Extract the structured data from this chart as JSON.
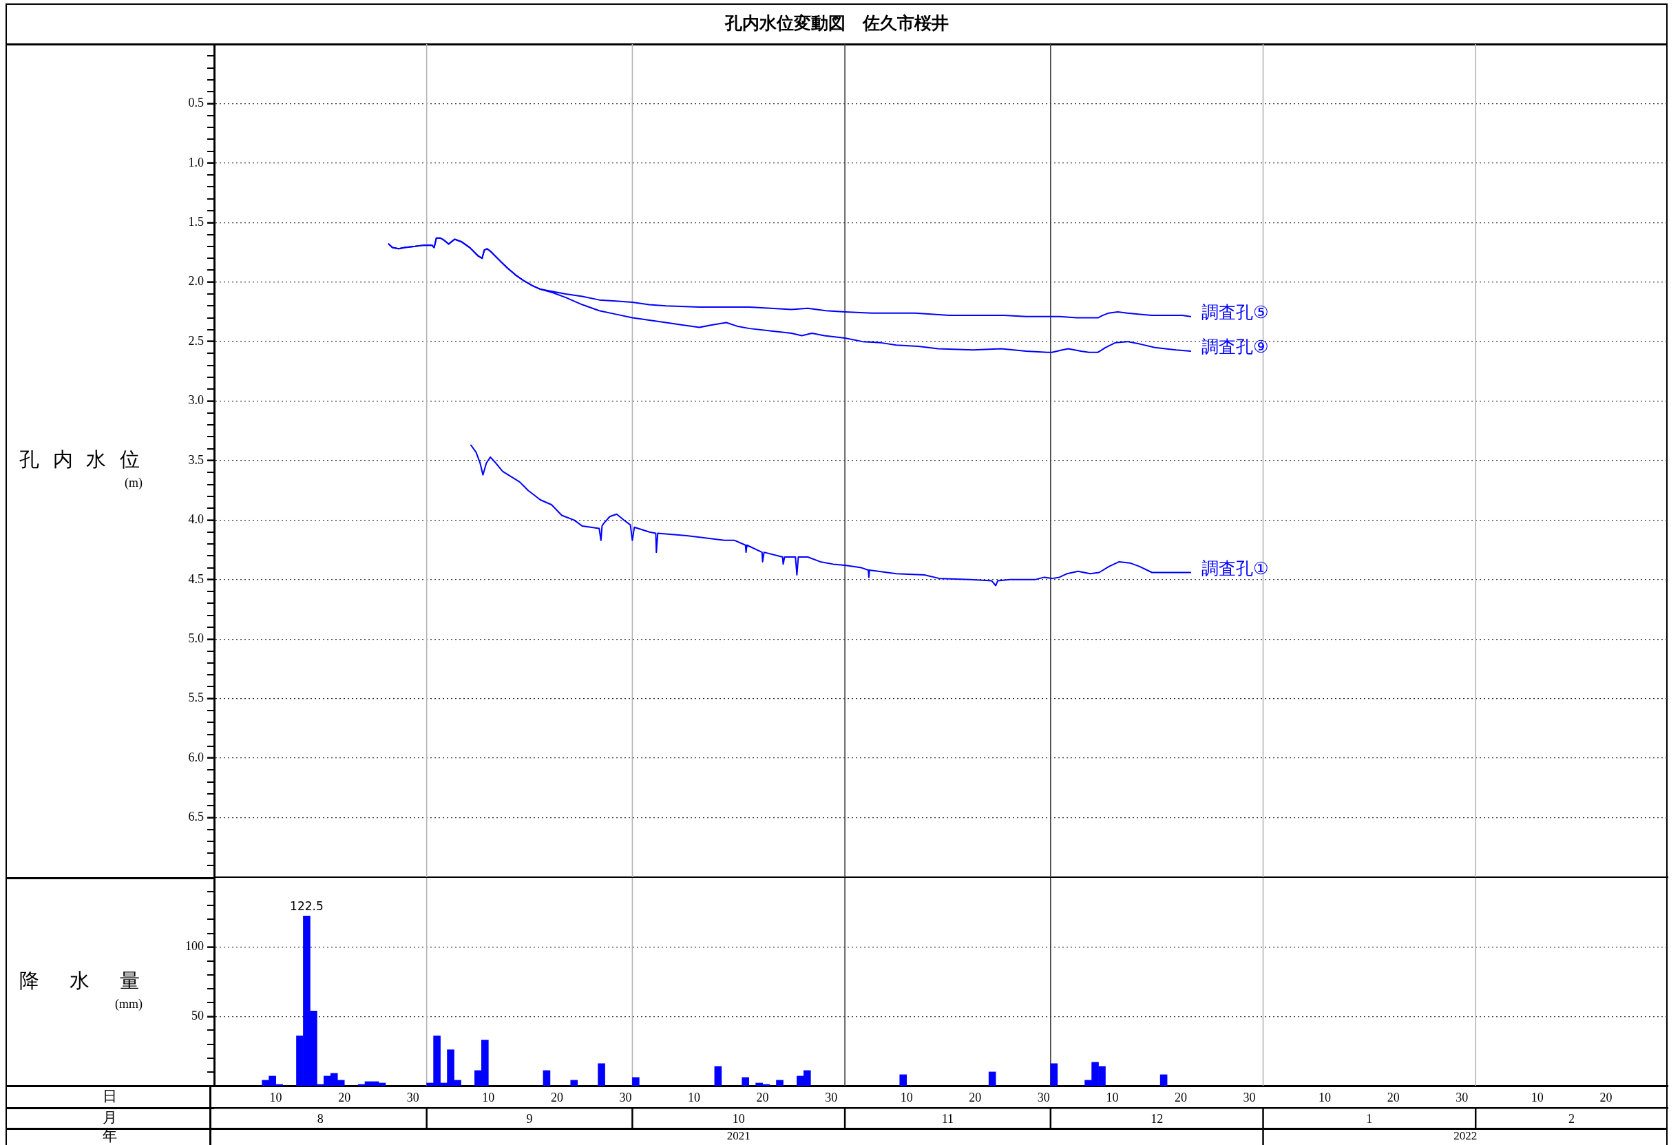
{
  "chart_data": [
    {
      "type": "line",
      "title": "孔内水位変動図　佐久市桜井",
      "ylabel": "孔内水位\n(m)",
      "xlim": [
        "2021-08-01",
        "2022-03-01"
      ],
      "tick_labels": "y",
      "ylim": [
        7,
        0
      ],
      "yticks": [
        {
          "value": 0.1,
          "label": null
        },
        {
          "value": 0.2,
          "label": null
        },
        {
          "value": 0.3,
          "label": null
        },
        {
          "value": 0.4,
          "label": null
        },
        0.5,
        {
          "value": 0.6,
          "label": null
        },
        {
          "value": 0.7,
          "label": null
        },
        {
          "value": 0.8,
          "label": null
        },
        {
          "value": 0.9,
          "label": null
        },
        {
          "value": 1,
          "label": "1.0"
        },
        {
          "value": 1.1,
          "label": null
        },
        {
          "value": 1.2,
          "label": null
        },
        {
          "value": 1.3,
          "label": null
        },
        {
          "value": 1.4,
          "label": null
        },
        1.5,
        {
          "value": 1.6,
          "label": null
        },
        {
          "value": 1.7,
          "label": null
        },
        {
          "value": 1.8,
          "label": null
        },
        {
          "value": 1.9,
          "label": null
        },
        {
          "value": 2,
          "label": "2.0"
        },
        {
          "value": 2.1,
          "label": null
        },
        {
          "value": 2.2,
          "label": null
        },
        {
          "value": 2.3,
          "label": null
        },
        {
          "value": 2.4,
          "label": null
        },
        2.5,
        {
          "value": 2.6,
          "label": null
        },
        {
          "value": 2.7,
          "label": null
        },
        {
          "value": 2.8,
          "label": null
        },
        {
          "value": 2.9,
          "label": null
        },
        {
          "value": 3,
          "label": "3.0"
        },
        {
          "value": 3.1,
          "label": null
        },
        {
          "value": 3.2,
          "label": null
        },
        {
          "value": 3.3,
          "label": null
        },
        {
          "value": 3.4,
          "label": null
        },
        3.5,
        {
          "value": 3.6,
          "label": null
        },
        {
          "value": 3.7,
          "label": null
        },
        {
          "value": 3.8,
          "label": null
        },
        {
          "value": 3.9,
          "label": null
        },
        {
          "value": 4,
          "label": "4.0"
        },
        {
          "value": 4.1,
          "label": null
        },
        {
          "value": 4.2,
          "label": null
        },
        {
          "value": 4.3,
          "label": null
        },
        {
          "value": 4.4,
          "label": null
        },
        4.5,
        {
          "value": 4.6,
          "label": null
        },
        {
          "value": 4.7,
          "label": null
        },
        {
          "value": 4.8,
          "label": null
        },
        {
          "value": 4.9,
          "label": null
        },
        {
          "value": 5,
          "label": "5.0"
        },
        {
          "value": 5.1,
          "label": null
        },
        {
          "value": 5.2,
          "label": null
        },
        {
          "value": 5.3,
          "label": null
        },
        {
          "value": 5.4,
          "label": null
        },
        5.5,
        {
          "value": 5.6,
          "label": null
        },
        {
          "value": 5.7,
          "label": null
        },
        {
          "value": 5.8,
          "label": null
        },
        {
          "value": 5.9,
          "label": null
        },
        {
          "value": 6,
          "label": "6.0"
        },
        {
          "value": 6.1,
          "label": null
        },
        {
          "value": 6.2,
          "label": null
        },
        {
          "value": 6.3,
          "label": null
        },
        {
          "value": 6.4,
          "label": null
        },
        6.5,
        {
          "value": 6.6,
          "label": null
        },
        {
          "value": 6.7,
          "label": null
        },
        {
          "value": 6.8,
          "label": null
        },
        {
          "value": 6.9,
          "label": null
        }
      ],
      "grid": "y",
      "ref_lines": [
        {
          "axis": "x",
          "value": "2021-09-01",
          "color": "#b4b4b4"
        },
        {
          "axis": "x",
          "value": "2021-10-01",
          "color": "#b4b4b4"
        },
        {
          "axis": "x",
          "value": "2021-11-01",
          "color": "#404040"
        },
        {
          "axis": "x",
          "value": "2021-12-01",
          "color": "#404040"
        },
        {
          "axis": "x",
          "value": "2022-01-01",
          "color": "#b4b4b4"
        },
        {
          "axis": "x",
          "value": "2022-02-01",
          "color": "#b4b4b4"
        }
      ],
      "series": [
        {
          "name": "調査孔⑤",
          "color": "#0000ff",
          "x": [
            "2021-08-26T11:00",
            "2021-08-27T00:00",
            "2021-08-27T22:00",
            "2021-08-28T19:00",
            "2021-08-30T08:00",
            "2021-08-31T14:00",
            "2021-09-01T19:00",
            "2021-09-02T02:00",
            "2021-09-02T10:00",
            "2021-09-03T00:00",
            "2021-09-03T14:00",
            "2021-09-04T05:00",
            "2021-09-05T02:00",
            "2021-09-06T01:00",
            "2021-09-07T07:00",
            "2021-09-08T12:00",
            "2021-09-09T02:00",
            "2021-09-09T10:00",
            "2021-09-09T19:00",
            "2021-09-10T07:00",
            "2021-09-11T12:00",
            "2021-09-12T18:00",
            "2021-09-13T23:00",
            "2021-09-15T05:00",
            "2021-09-16T10:00",
            "2021-09-17T14:00",
            "2021-09-19T11:00",
            "2021-09-21T07:00",
            "2021-09-23T17:00",
            "2021-09-26T04:00",
            "2021-09-28T14:00",
            "2021-10-01T00:00",
            "2021-10-03T11:00",
            "2021-10-05T22:00",
            "2021-10-10T19:00",
            "2021-10-13T19:00",
            "2021-10-18T02:00",
            "2021-10-24T05:00",
            "2021-10-26T14:00",
            "2021-10-29T05:00",
            "2021-11-01T00:00",
            "2021-11-04T22:00",
            "2021-11-06T17:00",
            "2021-11-11T05:00",
            "2021-11-13T22:00",
            "2021-11-16T05:00",
            "2021-11-20T14:00",
            "2021-11-24T05:00",
            "2021-11-27T10:00",
            "2021-12-01T00:00",
            "2021-12-02T07:00",
            "2021-12-04T19:00",
            "2021-12-07T22:00",
            "2021-12-08T14:00",
            "2021-12-09T12:00",
            "2021-12-10T19:00",
            "2021-12-12T05:00",
            "2021-12-14T00:00",
            "2021-12-15T19:00",
            "2021-12-17T12:00",
            "2021-12-20T05:00",
            "2021-12-21T10:00"
          ],
          "values": [
            1.68,
            1.71,
            1.72,
            1.71,
            1.7,
            1.69,
            1.69,
            1.71,
            1.63,
            1.63,
            1.65,
            1.68,
            1.64,
            1.66,
            1.71,
            1.78,
            1.8,
            1.73,
            1.72,
            1.74,
            1.81,
            1.88,
            1.94,
            1.99,
            2.03,
            2.06,
            2.08,
            2.1,
            2.12,
            2.15,
            2.16,
            2.17,
            2.19,
            2.2,
            2.21,
            2.21,
            2.21,
            2.23,
            2.22,
            2.24,
            2.25,
            2.26,
            2.26,
            2.26,
            2.27,
            2.28,
            2.28,
            2.28,
            2.29,
            2.29,
            2.29,
            2.3,
            2.3,
            2.28,
            2.26,
            2.25,
            2.26,
            2.27,
            2.28,
            2.28,
            2.28,
            2.29
          ]
        },
        {
          "name": "調査孔⑨",
          "color": "#0000ff",
          "x": [
            "2021-08-26T11:00",
            "2021-08-27T00:00",
            "2021-08-27T22:00",
            "2021-08-28T19:00",
            "2021-08-30T08:00",
            "2021-08-31T14:00",
            "2021-09-01T19:00",
            "2021-09-02T02:00",
            "2021-09-02T10:00",
            "2021-09-03T00:00",
            "2021-09-03T14:00",
            "2021-09-04T05:00",
            "2021-09-05T02:00",
            "2021-09-06T01:00",
            "2021-09-07T07:00",
            "2021-09-08T12:00",
            "2021-09-09T02:00",
            "2021-09-09T10:00",
            "2021-09-09T19:00",
            "2021-09-10T07:00",
            "2021-09-11T12:00",
            "2021-09-12T18:00",
            "2021-09-13T23:00",
            "2021-09-15T05:00",
            "2021-09-16T10:00",
            "2021-09-17T14:00",
            "2021-09-19T11:00",
            "2021-09-21T07:00",
            "2021-09-23T17:00",
            "2021-09-26T04:00",
            "2021-09-28T14:00",
            "2021-10-01T00:00",
            "2021-10-03T11:00",
            "2021-10-05T22:00",
            "2021-10-08T07:00",
            "2021-10-10T19:00",
            "2021-10-12T14:00",
            "2021-10-14T17:00",
            "2021-10-16T06:00",
            "2021-10-18T02:00",
            "2021-10-21T02:00",
            "2021-10-24T05:00",
            "2021-10-25T17:00",
            "2021-10-27T05:00",
            "2021-10-29T00:00",
            "2021-11-01T00:00",
            "2021-11-03T14:00",
            "2021-11-06T07:00",
            "2021-11-08T12:00",
            "2021-11-11T17:00",
            "2021-11-14T14:00",
            "2021-11-19T17:00",
            "2021-11-23T19:00",
            "2021-11-27T10:00",
            "2021-11-30T12:00",
            "2021-12-01T05:00",
            "2021-12-02T17:00",
            "2021-12-03T14:00",
            "2021-12-05T10:00",
            "2021-12-06T14:00",
            "2021-12-07T22:00",
            "2021-12-09T00:00",
            "2021-12-10T10:00",
            "2021-12-12T05:00",
            "2021-12-14T00:00",
            "2021-12-16T05:00",
            "2021-12-19T07:00",
            "2021-12-21T10:00"
          ],
          "values": [
            1.68,
            1.71,
            1.72,
            1.71,
            1.7,
            1.69,
            1.69,
            1.71,
            1.63,
            1.63,
            1.65,
            1.68,
            1.64,
            1.66,
            1.71,
            1.78,
            1.8,
            1.73,
            1.72,
            1.74,
            1.81,
            1.88,
            1.94,
            1.99,
            2.03,
            2.06,
            2.09,
            2.13,
            2.19,
            2.24,
            2.27,
            2.3,
            2.32,
            2.34,
            2.36,
            2.38,
            2.36,
            2.34,
            2.37,
            2.39,
            2.41,
            2.43,
            2.45,
            2.43,
            2.45,
            2.47,
            2.5,
            2.51,
            2.53,
            2.54,
            2.56,
            2.57,
            2.56,
            2.58,
            2.59,
            2.59,
            2.57,
            2.56,
            2.58,
            2.59,
            2.59,
            2.55,
            2.51,
            2.5,
            2.52,
            2.55,
            2.57,
            2.58
          ]
        },
        {
          "name": "調査孔①",
          "color": "#0000ff",
          "x": [
            "2021-09-07T11:00",
            "2021-09-08T05:00",
            "2021-09-08T19:00",
            "2021-09-09T05:00",
            "2021-09-09T17:00",
            "2021-09-10T07:00",
            "2021-09-10T22:00",
            "2021-09-12T02:00",
            "2021-09-14T14:00",
            "2021-09-15T19:00",
            "2021-09-17T14:00",
            "2021-09-18T19:00",
            "2021-09-19T05:00",
            "2021-09-20T17:00",
            "2021-09-22T12:00",
            "2021-09-23T17:00",
            "2021-09-26T04:00",
            "2021-09-26T10:00",
            "2021-09-26T14:00",
            "2021-09-26T19:00",
            "2021-09-27T17:00",
            "2021-09-28T17:00",
            "2021-09-29T19:00",
            "2021-09-30T17:00",
            "2021-10-01T00:00",
            "2021-10-01T07:00",
            "2021-10-03T12:00",
            "2021-10-04T10:00",
            "2021-10-04T12:00",
            "2021-10-04T17:00",
            "2021-10-08T22:00",
            "2021-10-14T10:00",
            "2021-10-15T22:00",
            "2021-10-17T12:00",
            "2021-10-17T14:00",
            "2021-10-17T17:00",
            "2021-10-19T22:00",
            "2021-10-20T00:00",
            "2021-10-20T05:00",
            "2021-10-22T22:00",
            "2021-10-23T00:00",
            "2021-10-23T05:00",
            "2021-10-24T19:00",
            "2021-10-25T00:00",
            "2021-10-25T05:00",
            "2021-10-26T14:00",
            "2021-10-28T10:00",
            "2021-10-30T07:00",
            "2021-11-01T00:00",
            "2021-11-03T10:00",
            "2021-11-04T10:00",
            "2021-11-04T12:00",
            "2021-11-04T14:00",
            "2021-11-08T12:00",
            "2021-11-12T14:00",
            "2021-11-14T19:00",
            "2021-11-19T07:00",
            "2021-11-22T10:00",
            "2021-11-23T00:00",
            "2021-11-23T07:00",
            "2021-11-25T02:00",
            "2021-11-28T17:00",
            "2021-11-30T02:00",
            "2021-12-01T05:00",
            "2021-12-02T07:00",
            "2021-12-03T10:00",
            "2021-12-05T00:00",
            "2021-12-06T19:00",
            "2021-12-08T02:00",
            "2021-12-09T12:00",
            "2021-12-11T00:00",
            "2021-12-12T14:00",
            "2021-12-14T00:00",
            "2021-12-15T19:00",
            "2021-12-18T10:00",
            "2021-12-21T10:00"
          ],
          "values": [
            3.37,
            3.43,
            3.52,
            3.62,
            3.52,
            3.47,
            3.51,
            3.59,
            3.68,
            3.75,
            3.83,
            3.86,
            3.87,
            3.96,
            4.0,
            4.05,
            4.07,
            4.17,
            4.05,
            4.03,
            3.97,
            3.95,
            4.0,
            4.04,
            4.17,
            4.06,
            4.1,
            4.11,
            4.27,
            4.11,
            4.13,
            4.17,
            4.17,
            4.21,
            4.27,
            4.21,
            4.27,
            4.35,
            4.27,
            4.31,
            4.37,
            4.31,
            4.31,
            4.46,
            4.31,
            4.31,
            4.35,
            4.37,
            4.38,
            4.4,
            4.42,
            4.48,
            4.42,
            4.45,
            4.46,
            4.49,
            4.5,
            4.51,
            4.55,
            4.51,
            4.5,
            4.5,
            4.48,
            4.49,
            4.48,
            4.45,
            4.43,
            4.45,
            4.44,
            4.39,
            4.35,
            4.36,
            4.39,
            4.44,
            4.44,
            4.44
          ]
        }
      ]
    },
    {
      "type": "bar",
      "ylabel": "降水量\n(mm)",
      "xlabel": "日",
      "x2label": "月",
      "xlim": [
        "2021-08-01",
        "2022-03-01"
      ],
      "xticks": [
        {
          "value": "2021-08-10",
          "label": "10"
        },
        {
          "value": "2021-08-20",
          "label": "20"
        },
        {
          "value": "2021-08-30",
          "label": "30"
        },
        {
          "value": "2021-09-10",
          "label": "10"
        },
        {
          "value": "2021-09-20",
          "label": "20"
        },
        {
          "value": "2021-09-30",
          "label": "30"
        },
        {
          "value": "2021-10-10",
          "label": "10"
        },
        {
          "value": "2021-10-20",
          "label": "20"
        },
        {
          "value": "2021-10-30",
          "label": "30"
        },
        {
          "value": "2021-11-10",
          "label": "10"
        },
        {
          "value": "2021-11-20",
          "label": "20"
        },
        {
          "value": "2021-11-30",
          "label": "30"
        },
        {
          "value": "2021-12-10",
          "label": "10"
        },
        {
          "value": "2021-12-20",
          "label": "20"
        },
        {
          "value": "2021-12-30",
          "label": "30"
        },
        {
          "value": "2022-01-10",
          "label": "10"
        },
        {
          "value": "2022-01-20",
          "label": "20"
        },
        {
          "value": "2022-01-30",
          "label": "30"
        },
        {
          "value": "2022-02-10",
          "label": "10"
        },
        {
          "value": "2022-02-20",
          "label": "20"
        }
      ],
      "x2lim": [
        "2021-08-01",
        "2022-03-01"
      ],
      "x2ticks": [
        {
          "value": "2021-08-16T12:00",
          "label": "8"
        },
        {
          "value": "2021-09-01",
          "label": null
        },
        {
          "value": "2021-09-16",
          "label": "9"
        },
        {
          "value": "2021-10-01",
          "label": null
        },
        {
          "value": "2021-10-16T12:00",
          "label": "10"
        },
        {
          "value": "2021-11-01",
          "label": null
        },
        {
          "value": "2021-11-16",
          "label": "11"
        },
        {
          "value": "2021-12-01",
          "label": null
        },
        {
          "value": "2021-12-16T12:00",
          "label": "12"
        },
        {
          "value": "2022-01-01",
          "label": null
        },
        {
          "value": "2022-01-16T12:00",
          "label": "1"
        },
        {
          "value": "2022-02-01",
          "label": null
        },
        {
          "value": "2022-02-15",
          "label": "2"
        }
      ],
      "ylim": [
        0,
        150
      ],
      "yticks": [
        {
          "value": 10,
          "label": null
        },
        {
          "value": 20,
          "label": null
        },
        {
          "value": 30,
          "label": null
        },
        {
          "value": 40,
          "label": null
        },
        50,
        {
          "value": 60,
          "label": null
        },
        {
          "value": 70,
          "label": null
        },
        {
          "value": 80,
          "label": null
        },
        {
          "value": 90,
          "label": null
        },
        100,
        {
          "value": 110,
          "label": null
        },
        {
          "value": 120,
          "label": null
        },
        {
          "value": 130,
          "label": null
        },
        {
          "value": 140,
          "label": null
        }
      ],
      "grid": "y",
      "ref_lines": [
        {
          "axis": "x",
          "value": "2021-09-01",
          "color": "#b4b4b4"
        },
        {
          "axis": "x",
          "value": "2021-10-01",
          "color": "#b4b4b4"
        },
        {
          "axis": "x",
          "value": "2021-11-01",
          "color": "#404040"
        },
        {
          "axis": "x",
          "value": "2021-12-01",
          "color": "#404040"
        },
        {
          "axis": "x",
          "value": "2022-01-01",
          "color": "#b4b4b4"
        },
        {
          "axis": "x",
          "value": "2022-02-01",
          "color": "#b4b4b4"
        }
      ],
      "annotations": [
        "年",
        "2021",
        "2022"
      ],
      "series": [
        {
          "color": "#0000ff",
          "x": [
            "2021-08-08",
            "2021-08-09",
            "2021-08-10",
            "2021-08-13",
            "2021-08-14",
            "2021-08-15",
            "2021-08-16",
            "2021-08-17",
            "2021-08-18",
            "2021-08-19",
            "2021-08-22",
            "2021-08-23",
            "2021-08-24",
            "2021-08-25",
            "2021-09-01",
            "2021-09-02",
            "2021-09-03",
            "2021-09-04",
            "2021-09-05",
            "2021-09-08",
            "2021-09-09",
            "2021-09-18",
            "2021-09-22",
            "2021-09-26",
            "2021-10-01",
            "2021-10-13",
            "2021-10-17",
            "2021-10-19",
            "2021-10-20",
            "2021-10-22",
            "2021-10-25",
            "2021-10-26",
            "2021-11-09",
            "2021-11-22",
            "2021-12-01",
            "2021-12-06",
            "2021-12-07",
            "2021-12-08",
            "2021-12-17"
          ],
          "values": [
            4,
            7,
            1,
            36,
            122.5,
            54,
            1,
            7,
            9,
            4,
            1,
            3,
            3,
            2,
            2,
            36,
            2,
            26,
            4,
            11,
            33,
            11,
            4,
            16,
            6,
            14,
            6,
            2,
            1,
            4,
            7,
            11,
            8,
            10,
            16,
            4,
            17,
            14,
            8
          ],
          "value_labels": [
            null,
            null,
            null,
            null,
            "122.5",
            null,
            null,
            null,
            null,
            null,
            null,
            null,
            null,
            null,
            null,
            null,
            null,
            null,
            null,
            null,
            null,
            null,
            null,
            null,
            null,
            null,
            null,
            null,
            null,
            null,
            null,
            null,
            null,
            null,
            null,
            null,
            null,
            null,
            null
          ]
        }
      ]
    }
  ]
}
